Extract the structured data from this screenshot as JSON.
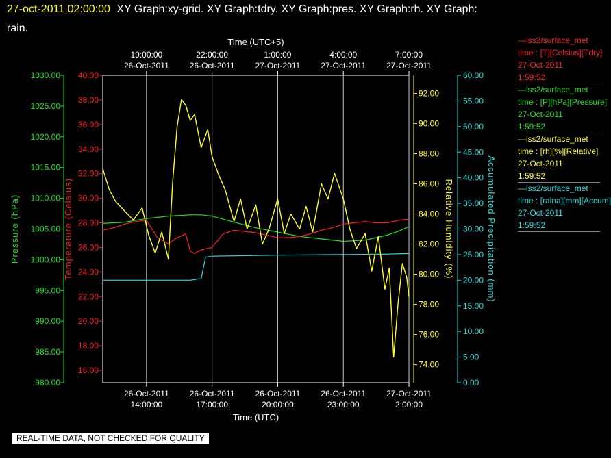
{
  "header": {
    "timestamp": "27-oct-2011,02:00:00",
    "title_line1": "XY Graph:xy-grid.  XY Graph:tdry.  XY Graph:pres.  XY Graph:rh.  XY Graph:",
    "title_line2": "rain."
  },
  "legend": [
    {
      "line1": "—iss2/surface_met",
      "line2": "time : [T][Celsius][Tdry]",
      "line3": "27-Oct-2011",
      "line4": "1:59:52",
      "color": "#ff2020"
    },
    {
      "line1": "—iss2/surface_met",
      "line2": "time : [P][hPa][Pressure]",
      "line3": "27-Oct-2011",
      "line4": "1:59:52",
      "color": "#20e020"
    },
    {
      "line1": "—iss2/surface_met",
      "line2": "time : [rh][%][Relative]",
      "line3": "27-Oct-2011",
      "line4": "1:59:52",
      "color": "#ffff20"
    },
    {
      "line1": "—iss2/surface_met",
      "line2": "time : [raina][mm][Accum]",
      "line3": "27-Oct-2011",
      "line4": "1:59:52",
      "color": "#20e0e0"
    }
  ],
  "footer_note": "REAL-TIME DATA, NOT CHECKED FOR QUALITY",
  "chart_data": {
    "type": "line",
    "xlabel_bottom": "Time (UTC)",
    "xlabel_top": "Time (UTC+5)",
    "x_range_hours_utc": [
      "26-Oct-2011 12:00",
      "27-Oct-2011 02:00"
    ],
    "x_ticks_bottom": [
      {
        "date": "26-Oct-2011",
        "time": "14:00:00"
      },
      {
        "date": "26-Oct-2011",
        "time": "17:00:00"
      },
      {
        "date": "26-Oct-2011",
        "time": "20:00:00"
      },
      {
        "date": "26-Oct-2011",
        "time": "23:00:00"
      },
      {
        "date": "27-Oct-2011",
        "time": "2:00:00"
      }
    ],
    "x_ticks_top": [
      {
        "time": "19:00:00",
        "date": "26-Oct-2011"
      },
      {
        "time": "22:00:00",
        "date": "26-Oct-2011"
      },
      {
        "time": "1:00:00",
        "date": "27-Oct-2011"
      },
      {
        "time": "4:00:00",
        "date": "27-Oct-2011"
      },
      {
        "time": "7:00:00",
        "date": "27-Oct-2011"
      }
    ],
    "grid": true,
    "axes": [
      {
        "label": "Pressure (hPa)",
        "color": "#20e020",
        "ticks": [
          "1030.00",
          "1025.00",
          "1020.00",
          "1015.00",
          "1010.00",
          "1005.00",
          "1000.00",
          "995.00",
          "990.00",
          "985.00",
          "980.00"
        ],
        "ylim": [
          980,
          1030
        ]
      },
      {
        "label": "Temperature (Celsius)",
        "color": "#ff2020",
        "ticks": [
          "40.00",
          "38.00",
          "36.00",
          "34.00",
          "32.00",
          "30.00",
          "28.00",
          "26.00",
          "24.00",
          "22.00",
          "20.00",
          "18.00",
          "16.00"
        ],
        "ylim": [
          15,
          40
        ]
      },
      {
        "label": "Relative Humidity (%)",
        "color": "#ffff20",
        "ticks": [
          "92.00",
          "90.00",
          "88.00",
          "86.00",
          "84.00",
          "82.00",
          "80.00",
          "78.00",
          "76.00",
          "74.00"
        ],
        "ylim": [
          72.8,
          93.2
        ]
      },
      {
        "label": "Accumulated Precipitation (mm)",
        "color": "#20e0e0",
        "ticks": [
          "60.00",
          "55.00",
          "50.00",
          "45.00",
          "40.00",
          "35.00",
          "30.00",
          "25.00",
          "20.00",
          "15.00",
          "10.00",
          "5.00",
          "0.00"
        ],
        "ylim": [
          0,
          60
        ]
      }
    ],
    "series": [
      {
        "name": "iss2/surface_met time : [T][Celsius][Tdry]",
        "axis": 1,
        "color": "#ff2020",
        "x": [
          12.0,
          12.5,
          13.0,
          13.5,
          14.0,
          14.5,
          15.0,
          15.4,
          15.8,
          16.0,
          16.2,
          16.5,
          17.0,
          17.5,
          18.0,
          18.5,
          19.0,
          19.5,
          20.0,
          20.5,
          21.0,
          21.5,
          22.0,
          22.5,
          23.0,
          23.5,
          24.0,
          24.5,
          25.0,
          25.5,
          26.0
        ],
        "values": [
          27.4,
          27.6,
          27.9,
          28.1,
          28.2,
          26.8,
          26.3,
          26.8,
          27.1,
          25.7,
          25.5,
          25.8,
          26.0,
          27.1,
          27.4,
          27.3,
          27.2,
          27.0,
          26.8,
          26.8,
          26.9,
          27.1,
          27.4,
          27.6,
          27.9,
          28.0,
          28.1,
          28.0,
          28.0,
          28.2,
          28.3
        ]
      },
      {
        "name": "iss2/surface_met time : [P][hPa][Pressure]",
        "axis": 0,
        "color": "#20e020",
        "x": [
          12.0,
          13.0,
          14.0,
          15.0,
          16.0,
          16.5,
          17.0,
          18.0,
          19.0,
          20.0,
          21.0,
          22.0,
          23.0,
          24.0,
          25.0,
          25.5,
          26.0
        ],
        "values": [
          1005.9,
          1006.1,
          1006.7,
          1007.1,
          1007.3,
          1007.3,
          1007.1,
          1006.1,
          1005.2,
          1004.5,
          1003.8,
          1003.4,
          1003.0,
          1003.2,
          1004.0,
          1004.6,
          1005.4
        ]
      },
      {
        "name": "iss2/surface_met time : [rh][%][Relative]",
        "axis": 2,
        "color": "#ffff20",
        "x": [
          12.0,
          12.3,
          12.6,
          13.0,
          13.4,
          13.8,
          14.1,
          14.4,
          14.7,
          15.0,
          15.2,
          15.4,
          15.6,
          15.8,
          16.0,
          16.2,
          16.5,
          16.8,
          17.0,
          17.3,
          17.6,
          18.0,
          18.3,
          18.6,
          19.0,
          19.3,
          19.6,
          20.0,
          20.3,
          20.6,
          21.0,
          21.3,
          21.6,
          22.0,
          22.3,
          22.6,
          23.0,
          23.3,
          23.6,
          24.0,
          24.3,
          24.6,
          24.9,
          25.1,
          25.3,
          25.5,
          25.7,
          25.9,
          26.0
        ],
        "values": [
          87.0,
          85.6,
          84.8,
          84.2,
          83.6,
          84.4,
          82.6,
          81.4,
          82.8,
          81.0,
          86.2,
          89.8,
          91.6,
          91.2,
          90.2,
          90.6,
          88.4,
          89.6,
          87.8,
          86.6,
          85.6,
          83.5,
          85.0,
          83.0,
          84.6,
          82.0,
          83.0,
          85.0,
          82.7,
          84.0,
          83.0,
          84.5,
          82.8,
          86.0,
          85.0,
          86.7,
          85.0,
          83.0,
          81.7,
          82.7,
          80.2,
          82.5,
          79.0,
          80.4,
          74.5,
          78.0,
          80.7,
          79.8,
          78.5
        ]
      },
      {
        "name": "iss2/surface_met time : [raina][mm][Accum]",
        "axis": 3,
        "color": "#20e0e0",
        "x": [
          12.0,
          13.0,
          14.0,
          15.0,
          16.0,
          16.3,
          16.5,
          16.7,
          17.0,
          20.0,
          23.0,
          25.0,
          26.0
        ],
        "values": [
          20.0,
          20.0,
          20.0,
          20.0,
          20.0,
          20.2,
          20.3,
          24.5,
          24.7,
          24.9,
          25.0,
          25.1,
          25.2
        ]
      }
    ]
  }
}
